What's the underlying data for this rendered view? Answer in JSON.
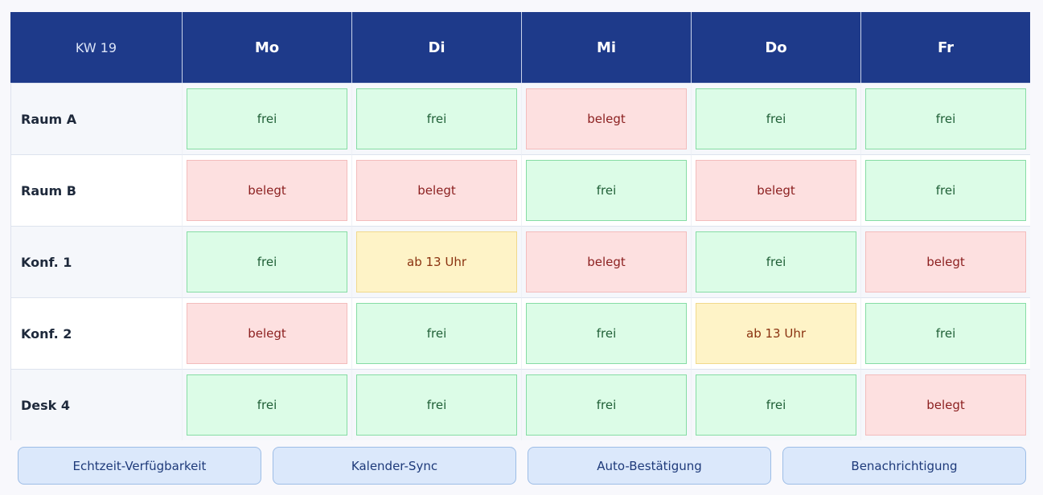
{
  "header": {
    "corner": "KW 19",
    "days": [
      "Mo",
      "Di",
      "Mi",
      "Do",
      "Fr"
    ]
  },
  "table": {
    "rows": [
      {
        "label": "Raum A",
        "cells": [
          {
            "text": "frei",
            "tone": "green"
          },
          {
            "text": "frei",
            "tone": "green"
          },
          {
            "text": "belegt",
            "tone": "red"
          },
          {
            "text": "frei",
            "tone": "green"
          },
          {
            "text": "frei",
            "tone": "green"
          }
        ]
      },
      {
        "label": "Raum B",
        "cells": [
          {
            "text": "belegt",
            "tone": "red"
          },
          {
            "text": "belegt",
            "tone": "red"
          },
          {
            "text": "frei",
            "tone": "green"
          },
          {
            "text": "belegt",
            "tone": "red"
          },
          {
            "text": "frei",
            "tone": "green"
          }
        ]
      },
      {
        "label": "Konf. 1",
        "cells": [
          {
            "text": "frei",
            "tone": "green"
          },
          {
            "text": "ab 13 Uhr",
            "tone": "yellow"
          },
          {
            "text": "belegt",
            "tone": "red"
          },
          {
            "text": "frei",
            "tone": "green"
          },
          {
            "text": "belegt",
            "tone": "red"
          }
        ]
      },
      {
        "label": "Konf. 2",
        "cells": [
          {
            "text": "belegt",
            "tone": "red"
          },
          {
            "text": "frei",
            "tone": "green"
          },
          {
            "text": "frei",
            "tone": "green"
          },
          {
            "text": "ab 13 Uhr",
            "tone": "yellow"
          },
          {
            "text": "frei",
            "tone": "green"
          }
        ]
      },
      {
        "label": "Desk 4",
        "cells": [
          {
            "text": "frei",
            "tone": "green"
          },
          {
            "text": "frei",
            "tone": "green"
          },
          {
            "text": "frei",
            "tone": "green"
          },
          {
            "text": "frei",
            "tone": "green"
          },
          {
            "text": "belegt",
            "tone": "red"
          }
        ]
      }
    ]
  },
  "features": [
    "Echtzeit-Verfügbarkeit",
    "Kalender-Sync",
    "Auto-Bestätigung",
    "Benachrichtigung"
  ]
}
